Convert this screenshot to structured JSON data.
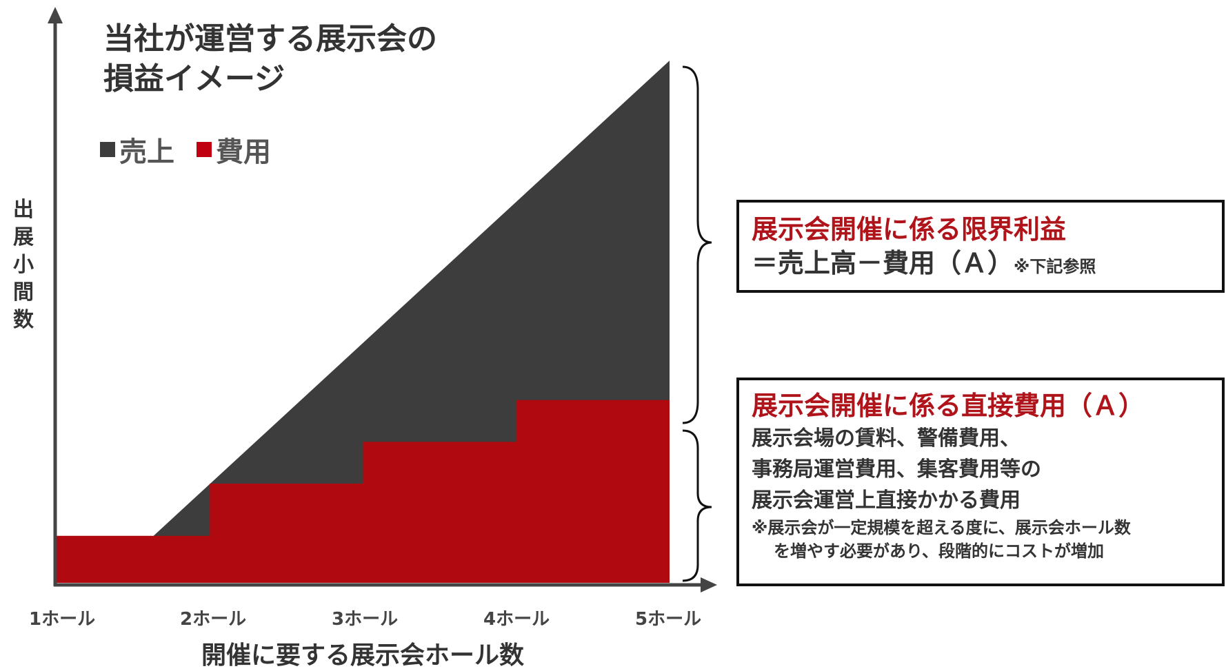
{
  "title": {
    "line1": "当社が運営する展示会の",
    "line2": "損益イメージ"
  },
  "legend": {
    "items": [
      {
        "label": "売上",
        "color": "#3d3d3d"
      },
      {
        "label": "費用",
        "color": "#b0090f"
      }
    ]
  },
  "chart_data": {
    "type": "area",
    "categories": [
      "1ホール",
      "2ホール",
      "3ホール",
      "4ホール",
      "5ホール"
    ],
    "xlabel": "開催に要する展示会ホール数",
    "ylabel": "出展小間数",
    "series": [
      {
        "name": "売上",
        "shape": "linear",
        "points": [
          [
            1.3,
            0
          ],
          [
            5,
            10
          ]
        ],
        "color": "#3d3d3d"
      },
      {
        "name": "費用",
        "shape": "step",
        "steps": [
          [
            1,
            2,
            0.9
          ],
          [
            2,
            3,
            1.9
          ],
          [
            3,
            4,
            2.7
          ],
          [
            4,
            5,
            3.5
          ]
        ],
        "color": "#b0090f"
      }
    ],
    "xlim": [
      1,
      5
    ],
    "ylim": [
      0,
      10
    ]
  },
  "ylabel_chars": [
    "出",
    "展",
    "小",
    "間",
    "数"
  ],
  "annotations": {
    "profit": {
      "title": "展示会開催に係る限界利益",
      "formula": "＝売上高－費用（Ａ）",
      "ref": "※下記参照"
    },
    "cost": {
      "title": "展示会開催に係る直接費用（Ａ）",
      "lines": [
        "展示会場の賃料、警備費用、",
        "事務局運営費用、集客費用等の",
        "展示会運営上直接かかる費用"
      ],
      "note_line1": "※展示会が一定規模を超える度に、展示会ホール数",
      "note_line2": "を増やす必要があり、段階的にコストが増加"
    }
  }
}
